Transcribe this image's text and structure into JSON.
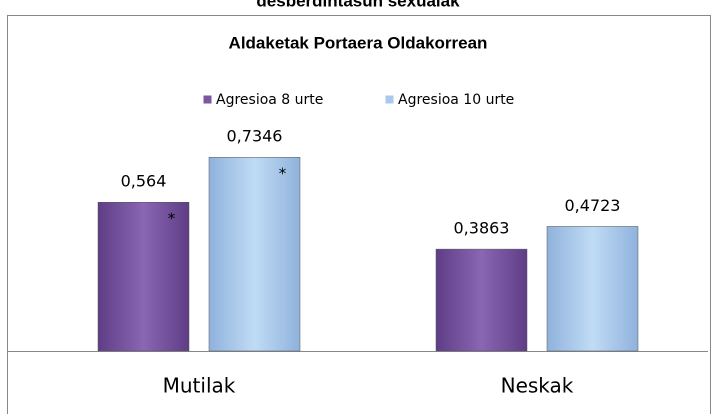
{
  "chart_data": {
    "type": "bar",
    "supertitle": "desberdintasun sexualak",
    "title": "Aldaketak Portaera Oldakorrean",
    "categories": [
      "Mutilak",
      "Neskak"
    ],
    "series": [
      {
        "name": "Agresioa 8 urte",
        "color": "#7b56a3",
        "values": [
          0.564,
          0.3863
        ],
        "value_labels": [
          "0,564",
          "0,3863"
        ]
      },
      {
        "name": "Agresioa 10 urte",
        "color": "#a9c9ec",
        "values": [
          0.7346,
          0.4723
        ],
        "value_labels": [
          "0,7346",
          "0,4723"
        ]
      }
    ],
    "annotations": [
      "*",
      "*"
    ],
    "ylim": [
      0,
      0.8
    ],
    "legend": "top"
  }
}
